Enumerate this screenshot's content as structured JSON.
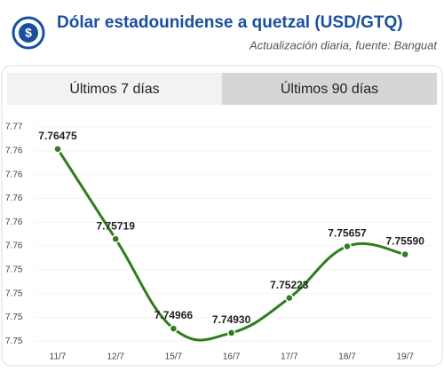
{
  "header": {
    "title": "Dólar estadounidense a quetzal (USD/GTQ)",
    "subtitle": "Actualización diaria, fuente: Banguat"
  },
  "tabs": [
    "Últimos 7 días",
    "Últimos 90 días"
  ],
  "chart_data": {
    "type": "line",
    "categories": [
      "11/7",
      "12/7",
      "15/7",
      "16/7",
      "17/7",
      "18/7",
      "19/7"
    ],
    "series": [
      {
        "color": "#2e7d1e",
        "values": [
          7.76475,
          7.75719,
          7.74966,
          7.7493,
          7.75223,
          7.75657,
          7.7559
        ],
        "value_labels": [
          "7.76475",
          "7.75719",
          "7.74966",
          "7.74930",
          "7.75223",
          "7.75657",
          "7.75590"
        ]
      }
    ],
    "ylim": [
      7.7478,
      7.7672
    ],
    "yticks": [
      {
        "value": 7.7486,
        "label": "7.75"
      },
      {
        "value": 7.7506,
        "label": "7.75"
      },
      {
        "value": 7.7526,
        "label": "7.75"
      },
      {
        "value": 7.7546,
        "label": "7.75"
      },
      {
        "value": 7.7566,
        "label": "7.76"
      },
      {
        "value": 7.7586,
        "label": "7.76"
      },
      {
        "value": 7.7606,
        "label": "7.76"
      },
      {
        "value": 7.7626,
        "label": "7.76"
      },
      {
        "value": 7.7646,
        "label": "7.76"
      },
      {
        "value": 7.7666,
        "label": "7.77"
      }
    ],
    "grid": true
  }
}
